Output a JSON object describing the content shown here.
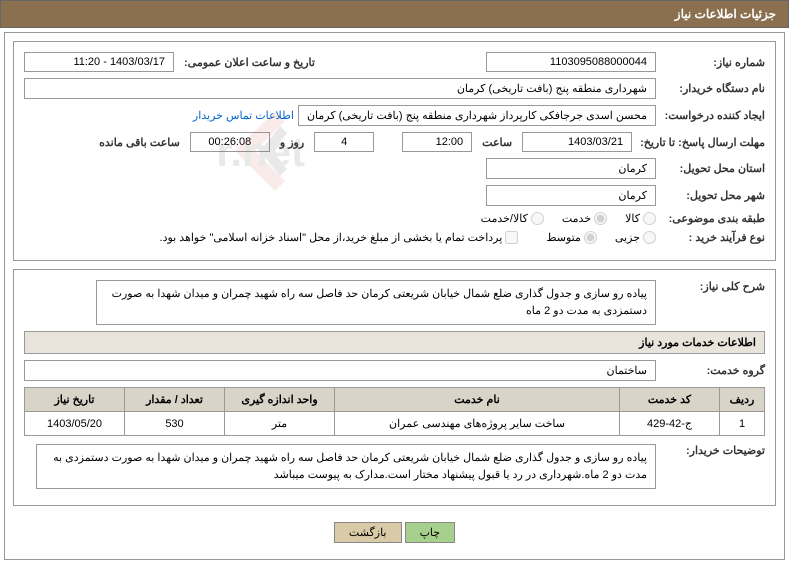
{
  "header": {
    "title": "جزئیات اطلاعات نیاز"
  },
  "req": {
    "number_label": "شماره نیاز:",
    "number": "1103095088000044",
    "announce_label": "تاریخ و ساعت اعلان عمومی:",
    "announce": "1403/03/17 - 11:20",
    "buyer_org_label": "نام دستگاه خریدار:",
    "buyer_org": "شهرداری منطقه پنج (بافت تاریخی) کرمان",
    "creator_label": "ایجاد کننده درخواست:",
    "creator": "محسن اسدی جرجافکی کارپرداز شهرداری منطقه پنج (بافت تاریخی) کرمان",
    "contact_link": "اطلاعات تماس خریدار",
    "deadline_label": "مهلت ارسال پاسخ: تا تاریخ:",
    "deadline_date": "1403/03/21",
    "hour_label": "ساعت",
    "deadline_time": "12:00",
    "days": "4",
    "days_unit": "روز و",
    "remain_time": "00:26:08",
    "remain_label": "ساعت باقی مانده",
    "province_label": "استان محل تحویل:",
    "province": "کرمان",
    "city_label": "شهر محل تحویل:",
    "city": "کرمان",
    "category_label": "طبقه بندی موضوعی:",
    "r_goods": "کالا",
    "r_service": "خدمت",
    "r_both": "کالا/خدمت",
    "process_label": "نوع فرآیند خرید :",
    "r_partial": "جزیی",
    "r_medium": "متوسط",
    "pay_note": "پرداخت تمام یا بخشی از مبلغ خرید،از محل \"اسناد خزانه اسلامی\" خواهد بود."
  },
  "desc": {
    "overall_label": "شرح کلی نیاز:",
    "overall_text": "پیاده رو سازی و جدول گذاری ضلع شمال خیابان شریعتی کرمان حد فاصل سه راه شهید چمران و میدان شهدا به صورت دستمزدی به مدت دو 2 ماه",
    "services_title": "اطلاعات خدمات مورد نیاز",
    "group_label": "گروه خدمت:",
    "group": "ساختمان"
  },
  "table": {
    "headers": {
      "row": "ردیف",
      "code": "کد خدمت",
      "name": "نام خدمت",
      "unit": "واحد اندازه گیری",
      "qty": "تعداد / مقدار",
      "date": "تاریخ نیاز"
    },
    "rows": [
      {
        "row": "1",
        "code": "ج-42-429",
        "name": "ساخت سایر پروژه‌های مهندسی عمران",
        "unit": "متر",
        "qty": "530",
        "date": "1403/05/20"
      }
    ]
  },
  "notes": {
    "buyer_note_label": "توضیحات خریدار:",
    "buyer_note": "پیاده رو سازی و جدول گذاری ضلع شمال خیابان شریعتی کرمان حد فاصل سه راه شهید چمران و میدان شهدا به صورت دستمزدی به مدت دو 2 ماه.شهرداری در رد یا قبول پیشنهاد مختار است.مدارک به پیوست میباشد"
  },
  "buttons": {
    "print": "چاپ",
    "back": "بازگشت"
  }
}
